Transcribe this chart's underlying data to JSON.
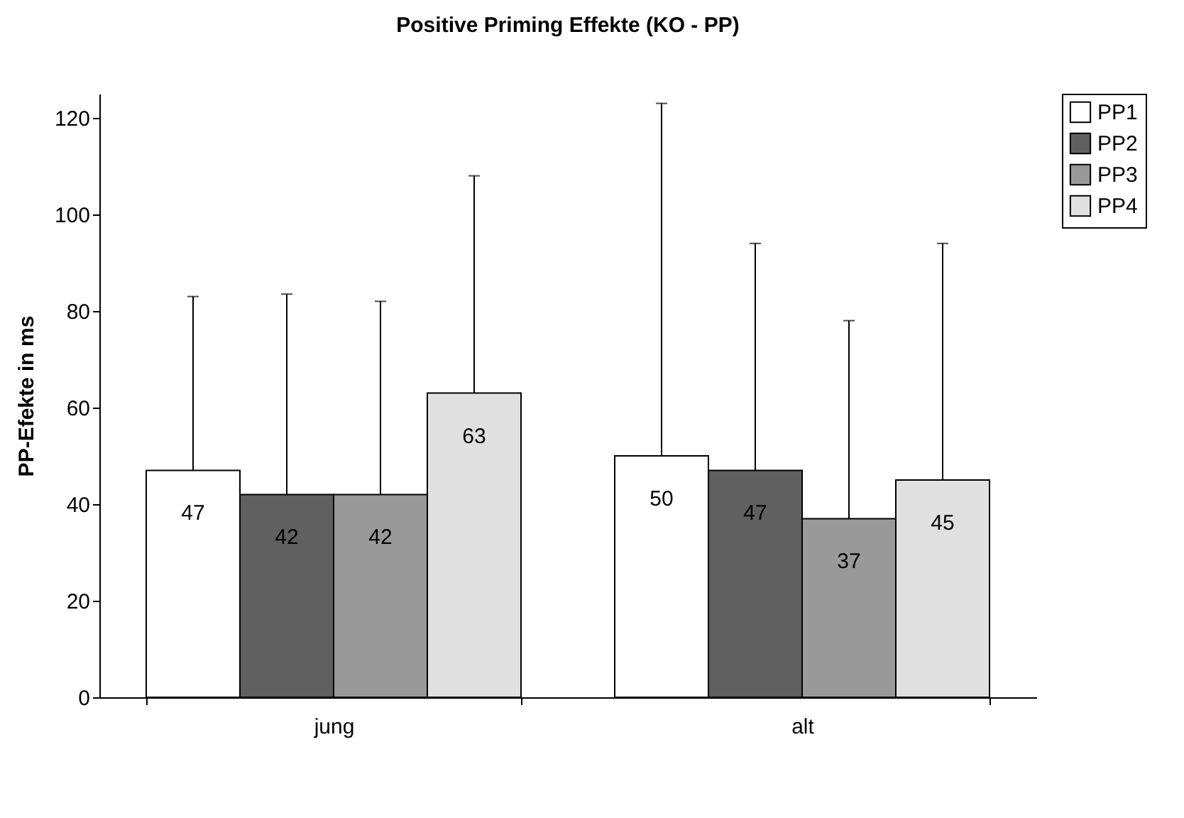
{
  "chart_data": {
    "type": "bar",
    "title": "Positive Priming Effekte (KO - PP)",
    "ylabel": "PP-Efekte in ms",
    "categories": [
      "jung",
      "alt"
    ],
    "series": [
      {
        "name": "PP1",
        "color": "#ffffff",
        "values": [
          47,
          50
        ],
        "errors": [
          [
            47,
            83
          ],
          [
            50,
            123
          ]
        ]
      },
      {
        "name": "PP2",
        "color": "#606060",
        "values": [
          42,
          47
        ],
        "errors": [
          [
            42,
            83.5
          ],
          [
            47,
            94
          ]
        ]
      },
      {
        "name": "PP3",
        "color": "#999999",
        "values": [
          42,
          37
        ],
        "errors": [
          [
            42,
            82
          ],
          [
            37,
            78
          ]
        ]
      },
      {
        "name": "PP4",
        "color": "#e0e0e0",
        "values": [
          63,
          45
        ],
        "errors": [
          [
            63,
            108
          ],
          [
            45,
            94
          ]
        ]
      }
    ],
    "ylim": [
      0,
      125
    ],
    "yticks": [
      0,
      20,
      40,
      60,
      80,
      100,
      120
    ],
    "grid": false,
    "legend": "right",
    "data_labels": true
  }
}
